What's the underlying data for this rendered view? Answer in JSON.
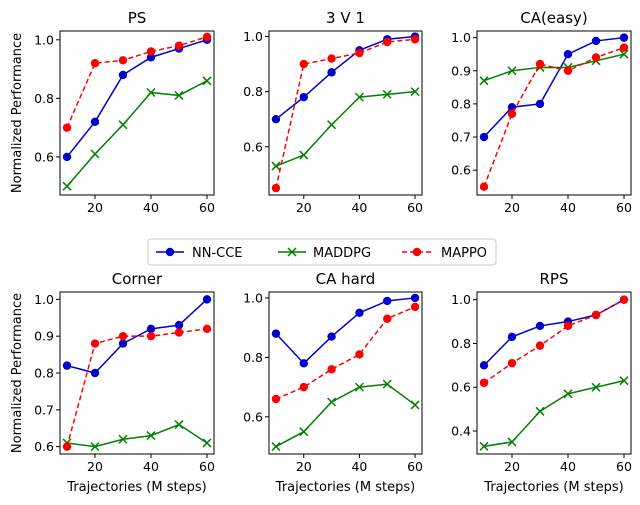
{
  "ylabel_shared": "Normalized Performance",
  "xlabel_shared": "Trajectories (M steps)",
  "legend": [
    {
      "name": "NN-CCE",
      "color": "#0000cc",
      "marker": "circle",
      "dash": "solid"
    },
    {
      "name": "MADDPG",
      "color": "#008000",
      "marker": "x",
      "dash": "solid"
    },
    {
      "name": "MAPPO",
      "color": "#ff0000",
      "marker": "circle",
      "dash": "dashed"
    }
  ],
  "chart_data": [
    {
      "type": "line",
      "title": "PS",
      "xlabel": "",
      "ylabel": "Normalized Performance",
      "x": [
        10,
        20,
        30,
        40,
        50,
        60
      ],
      "xlim": [
        7.5,
        62.5
      ],
      "xticks": [
        "20",
        "40",
        "60"
      ],
      "ylim": [
        0.47,
        1.03
      ],
      "yticks": [
        "0.6",
        "0.8",
        "1.0"
      ],
      "series": [
        {
          "name": "NN-CCE",
          "values": [
            0.6,
            0.72,
            0.88,
            0.94,
            0.97,
            1.0
          ]
        },
        {
          "name": "MADDPG",
          "values": [
            0.5,
            0.61,
            0.71,
            0.82,
            0.81,
            0.86
          ]
        },
        {
          "name": "MAPPO",
          "values": [
            0.7,
            0.92,
            0.93,
            0.96,
            0.98,
            1.01
          ]
        }
      ]
    },
    {
      "type": "line",
      "title": "3 V 1",
      "xlabel": "",
      "ylabel": "",
      "x": [
        10,
        20,
        30,
        40,
        50,
        60
      ],
      "xlim": [
        7.5,
        62.5
      ],
      "xticks": [
        "20",
        "40",
        "60"
      ],
      "ylim": [
        0.425,
        1.02
      ],
      "yticks": [
        "0.6",
        "0.8",
        "1.0"
      ],
      "series": [
        {
          "name": "NN-CCE",
          "values": [
            0.7,
            0.78,
            0.87,
            0.95,
            0.99,
            1.0
          ]
        },
        {
          "name": "MADDPG",
          "values": [
            0.53,
            0.57,
            0.68,
            0.78,
            0.79,
            0.8
          ]
        },
        {
          "name": "MAPPO",
          "values": [
            0.45,
            0.9,
            0.92,
            0.94,
            0.98,
            0.99
          ]
        }
      ]
    },
    {
      "type": "line",
      "title": "CA(easy)",
      "xlabel": "",
      "ylabel": "",
      "x": [
        10,
        20,
        30,
        40,
        50,
        60
      ],
      "xlim": [
        7.5,
        62.5
      ],
      "xticks": [
        "20",
        "40",
        "60"
      ],
      "ylim": [
        0.525,
        1.02
      ],
      "yticks": [
        "0.6",
        "0.7",
        "0.8",
        "0.9",
        "1.0"
      ],
      "series": [
        {
          "name": "NN-CCE",
          "values": [
            0.7,
            0.79,
            0.8,
            0.95,
            0.99,
            1.0
          ]
        },
        {
          "name": "MADDPG",
          "values": [
            0.87,
            0.9,
            0.91,
            0.91,
            0.93,
            0.95
          ]
        },
        {
          "name": "MAPPO",
          "values": [
            0.55,
            0.77,
            0.92,
            0.9,
            0.94,
            0.97
          ]
        }
      ]
    },
    {
      "type": "line",
      "title": "Corner",
      "xlabel": "Trajectories (M steps)",
      "ylabel": "Normalized Performance",
      "x": [
        10,
        20,
        30,
        40,
        50,
        60
      ],
      "xlim": [
        7.5,
        62.5
      ],
      "xticks": [
        "20",
        "40",
        "60"
      ],
      "ylim": [
        0.58,
        1.02
      ],
      "yticks": [
        "0.6",
        "0.7",
        "0.8",
        "0.9",
        "1.0"
      ],
      "series": [
        {
          "name": "NN-CCE",
          "values": [
            0.82,
            0.8,
            0.88,
            0.92,
            0.93,
            1.0
          ]
        },
        {
          "name": "MADDPG",
          "values": [
            0.61,
            0.6,
            0.62,
            0.63,
            0.66,
            0.61
          ]
        },
        {
          "name": "MAPPO",
          "values": [
            0.6,
            0.88,
            0.9,
            0.9,
            0.91,
            0.92
          ]
        }
      ]
    },
    {
      "type": "line",
      "title": "CA hard",
      "xlabel": "Trajectories (M steps)",
      "ylabel": "",
      "x": [
        10,
        20,
        30,
        40,
        50,
        60
      ],
      "xlim": [
        7.5,
        62.5
      ],
      "xticks": [
        "20",
        "40",
        "60"
      ],
      "ylim": [
        0.475,
        1.02
      ],
      "yticks": [
        "0.6",
        "0.8",
        "1.0"
      ],
      "series": [
        {
          "name": "NN-CCE",
          "values": [
            0.88,
            0.78,
            0.87,
            0.95,
            0.99,
            1.0
          ]
        },
        {
          "name": "MADDPG",
          "values": [
            0.5,
            0.55,
            0.65,
            0.7,
            0.71,
            0.64
          ]
        },
        {
          "name": "MAPPO",
          "values": [
            0.66,
            0.7,
            0.76,
            0.81,
            0.93,
            0.97
          ]
        }
      ]
    },
    {
      "type": "line",
      "title": "RPS",
      "xlabel": "Trajectories (M steps)",
      "ylabel": "",
      "x": [
        10,
        20,
        30,
        40,
        50,
        60
      ],
      "xlim": [
        7.5,
        62.5
      ],
      "xticks": [
        "20",
        "40",
        "60"
      ],
      "ylim": [
        0.295,
        1.035
      ],
      "yticks": [
        "0.4",
        "0.6",
        "0.8",
        "1.0"
      ],
      "series": [
        {
          "name": "NN-CCE",
          "values": [
            0.7,
            0.83,
            0.88,
            0.9,
            0.93,
            1.0
          ]
        },
        {
          "name": "MADDPG",
          "values": [
            0.33,
            0.35,
            0.49,
            0.57,
            0.6,
            0.63
          ]
        },
        {
          "name": "MAPPO",
          "values": [
            0.62,
            0.71,
            0.79,
            0.88,
            0.93,
            1.0
          ]
        }
      ]
    }
  ]
}
